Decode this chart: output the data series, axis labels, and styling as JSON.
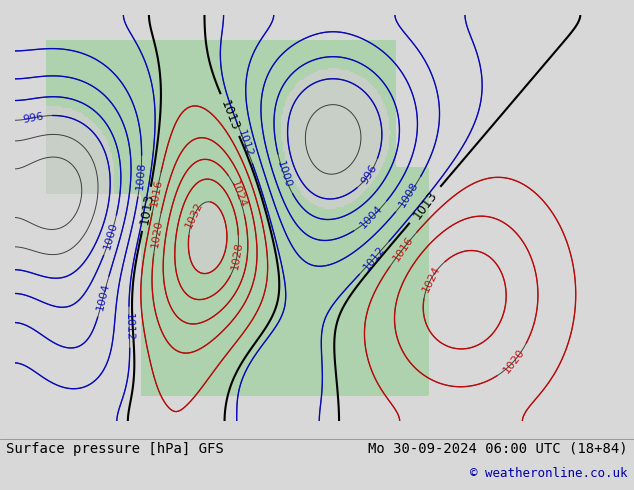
{
  "title_left": "Surface pressure [hPa] GFS",
  "title_right": "Mo 30-09-2024 06:00 UTC (18+84)",
  "copyright": "© weatheronline.co.uk",
  "bg_color": "#d8d8d8",
  "land_color": "#b8c8b8",
  "green_area_color": "#a8d4a8",
  "contour_color_red": "#cc0000",
  "contour_color_blue": "#0000cc",
  "contour_color_black": "#000000",
  "label_fontsize": 9,
  "title_fontsize": 10,
  "copyright_fontsize": 9,
  "fig_width": 6.34,
  "fig_height": 4.9,
  "dpi": 100
}
